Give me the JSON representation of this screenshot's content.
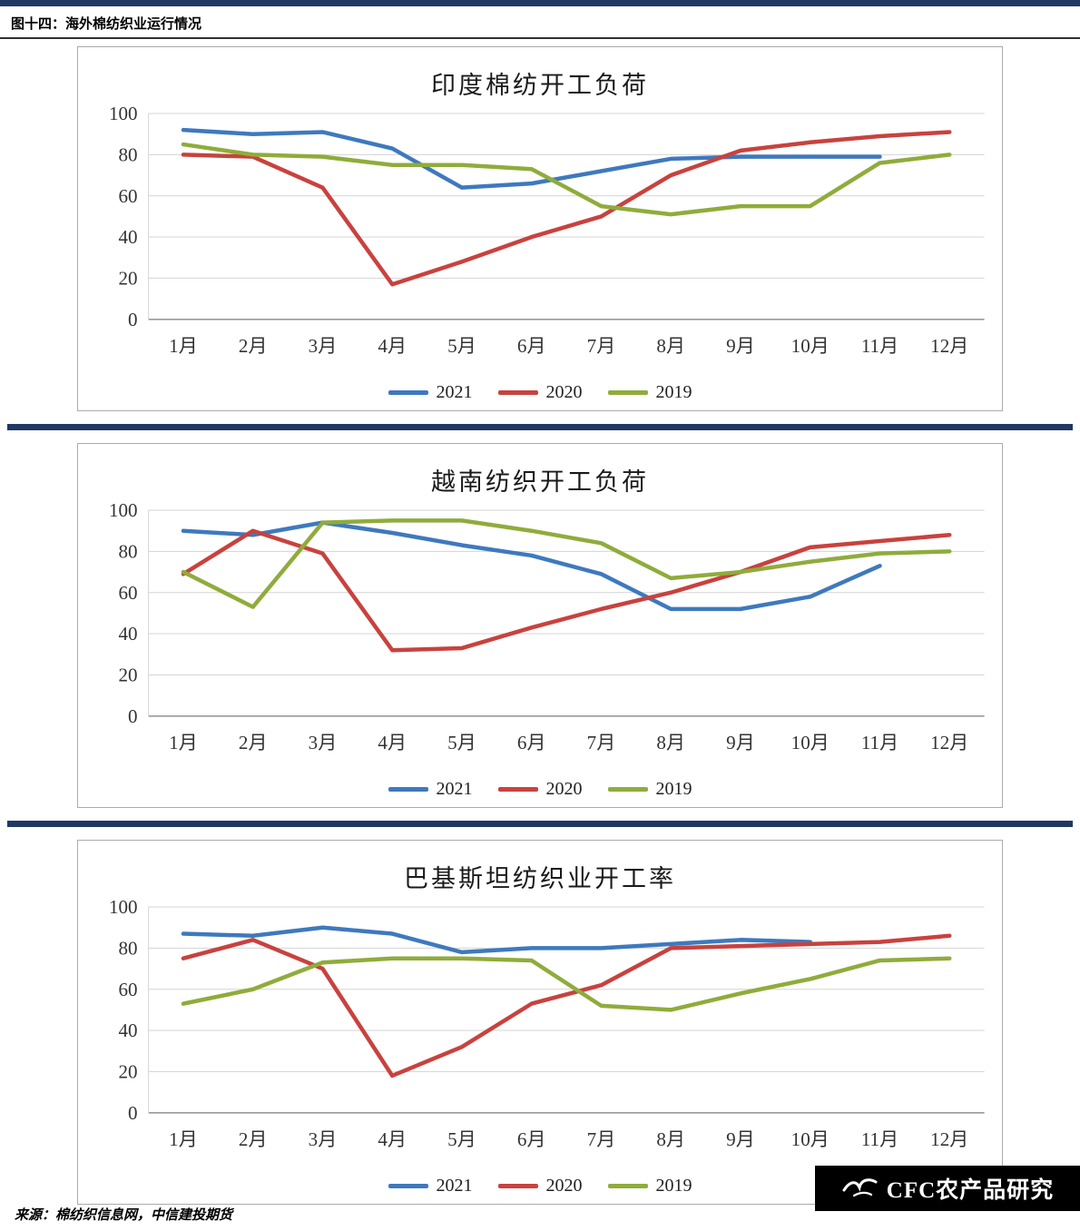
{
  "page": {
    "figure_label": "图十四：海外棉纺织业运行情况",
    "source_note": "来源：棉纺织信息网，中信建投期货",
    "watermark_text": "CFC农产品研究"
  },
  "colors": {
    "series_2021": "#3E79BE",
    "series_2020": "#C8423E",
    "series_2019": "#8FAC3B",
    "divider": "#203864",
    "grid": "#D9D9D9",
    "axis": "#999999",
    "tick_text": "#333333"
  },
  "y_ticks": [
    0,
    20,
    40,
    60,
    80,
    100
  ],
  "chart_data": [
    {
      "type": "line",
      "title": "印度棉纺开工负荷",
      "categories": [
        "1月",
        "2月",
        "3月",
        "4月",
        "5月",
        "6月",
        "7月",
        "8月",
        "9月",
        "10月",
        "11月",
        "12月"
      ],
      "ylim": [
        0,
        100
      ],
      "grid": true,
      "legend_position": "bottom",
      "series": [
        {
          "name": "2021",
          "color_key": "series_2021",
          "values": [
            92,
            90,
            91,
            83,
            64,
            66,
            72,
            78,
            79,
            79,
            79,
            null
          ]
        },
        {
          "name": "2020",
          "color_key": "series_2020",
          "values": [
            80,
            79,
            64,
            17,
            28,
            40,
            50,
            70,
            82,
            86,
            89,
            91
          ]
        },
        {
          "name": "2019",
          "color_key": "series_2019",
          "values": [
            85,
            80,
            79,
            75,
            75,
            73,
            55,
            51,
            55,
            55,
            76,
            80
          ]
        }
      ]
    },
    {
      "type": "line",
      "title": "越南纺织开工负荷",
      "categories": [
        "1月",
        "2月",
        "3月",
        "4月",
        "5月",
        "6月",
        "7月",
        "8月",
        "9月",
        "10月",
        "11月",
        "12月"
      ],
      "ylim": [
        0,
        100
      ],
      "grid": true,
      "legend_position": "bottom",
      "series": [
        {
          "name": "2021",
          "color_key": "series_2021",
          "values": [
            90,
            88,
            94,
            89,
            83,
            78,
            69,
            52,
            52,
            58,
            73,
            null
          ]
        },
        {
          "name": "2020",
          "color_key": "series_2020",
          "values": [
            69,
            90,
            79,
            32,
            33,
            43,
            52,
            60,
            70,
            82,
            85,
            88
          ]
        },
        {
          "name": "2019",
          "color_key": "series_2019",
          "values": [
            70,
            53,
            94,
            95,
            95,
            90,
            84,
            67,
            70,
            75,
            79,
            80
          ]
        }
      ]
    },
    {
      "type": "line",
      "title": "巴基斯坦纺织业开工率",
      "categories": [
        "1月",
        "2月",
        "3月",
        "4月",
        "5月",
        "6月",
        "7月",
        "8月",
        "9月",
        "10月",
        "11月",
        "12月"
      ],
      "ylim": [
        0,
        100
      ],
      "grid": true,
      "legend_position": "bottom",
      "series": [
        {
          "name": "2021",
          "color_key": "series_2021",
          "values": [
            87,
            86,
            90,
            87,
            78,
            80,
            80,
            82,
            84,
            83,
            null,
            null
          ]
        },
        {
          "name": "2020",
          "color_key": "series_2020",
          "values": [
            75,
            84,
            70,
            18,
            32,
            53,
            62,
            80,
            81,
            82,
            83,
            86
          ]
        },
        {
          "name": "2019",
          "color_key": "series_2019",
          "values": [
            53,
            60,
            73,
            75,
            75,
            74,
            52,
            50,
            58,
            65,
            74,
            75
          ]
        }
      ]
    }
  ]
}
